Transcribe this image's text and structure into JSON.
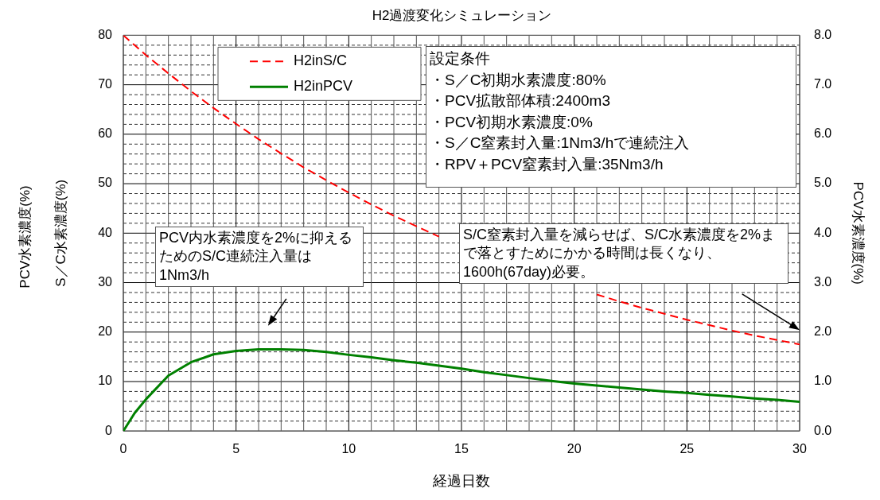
{
  "chart_data": {
    "type": "line",
    "title": "H2過渡変化シミュレーション",
    "xlabel": "経過日数",
    "ylabel": "S／C水素濃度(%)",
    "y2label": "PCV水素濃度(%)",
    "x": [
      0,
      0.5,
      1,
      2,
      3,
      4,
      5,
      6,
      7,
      8,
      9,
      10,
      11,
      12,
      13,
      14,
      15,
      16,
      17,
      18,
      19,
      20,
      21,
      22,
      23,
      24,
      25,
      26,
      27,
      28,
      29,
      30
    ],
    "series": [
      {
        "name": "H2inS/C",
        "color": "#ff0000",
        "line_style": "dashed",
        "values": [
          80,
          78.0,
          76.0,
          72.3,
          68.7,
          65.3,
          62.1,
          59.0,
          56.1,
          53.3,
          50.7,
          48.2,
          45.8,
          43.5,
          41.4,
          39.3,
          null,
          null,
          null,
          null,
          null,
          null,
          27.6,
          26.2,
          24.9,
          23.7,
          22.5,
          21.4,
          20.3,
          19.3,
          18.4,
          17.5
        ]
      },
      {
        "name": "H2inPCV",
        "color": "#008000",
        "line_style": "solid",
        "axis": "y2",
        "values": [
          0,
          0.36,
          0.64,
          1.12,
          1.39,
          1.55,
          1.62,
          1.65,
          1.65,
          1.64,
          1.6,
          1.54,
          1.49,
          1.43,
          1.38,
          1.32,
          1.26,
          1.19,
          1.13,
          1.07,
          1.01,
          0.96,
          0.92,
          0.88,
          0.84,
          0.8,
          0.77,
          0.73,
          0.7,
          0.66,
          0.63,
          0.59
        ]
      }
    ],
    "xlim": [
      0,
      30
    ],
    "xticks": [
      0,
      5,
      10,
      15,
      20,
      25,
      30
    ],
    "ylim": [
      0,
      80
    ],
    "yticks": [
      0,
      10,
      20,
      30,
      40,
      50,
      60,
      70,
      80
    ],
    "y2lim": [
      0,
      8
    ],
    "y2ticks": [
      {
        "value": 0,
        "label": "0.0"
      },
      {
        "value": 1,
        "label": "1.0"
      },
      {
        "value": 2,
        "label": "2.0"
      },
      {
        "value": 3,
        "label": "3.0"
      },
      {
        "value": 4,
        "label": "4.0"
      },
      {
        "value": 5,
        "label": "5.0"
      },
      {
        "value": 6,
        "label": "6.0"
      },
      {
        "value": 7,
        "label": "7.0"
      },
      {
        "value": 8,
        "label": "8.0"
      }
    ],
    "grid": true,
    "legend": "top left",
    "marker": "none",
    "annotations": [
      "PCV水素濃度(%)",
      "設定条件",
      "・S／C初期水素濃度:80%",
      "・PCV拡散部体積:2400m3",
      "・PCV初期水素濃度:0%",
      "・S／C窒素封入量:1Nm3/hで連続注入",
      "・RPV＋PCV窒素封入量:35Nm3/h",
      "PCV内水素濃度を2%に抑えるためのS/C連続注入量は1Nm3/h",
      "S/C窒素封入量を減らせば、S/C水素濃度を2%まで落とすためにかかる時間は長くなり、1600h(67day)必要。"
    ]
  }
}
